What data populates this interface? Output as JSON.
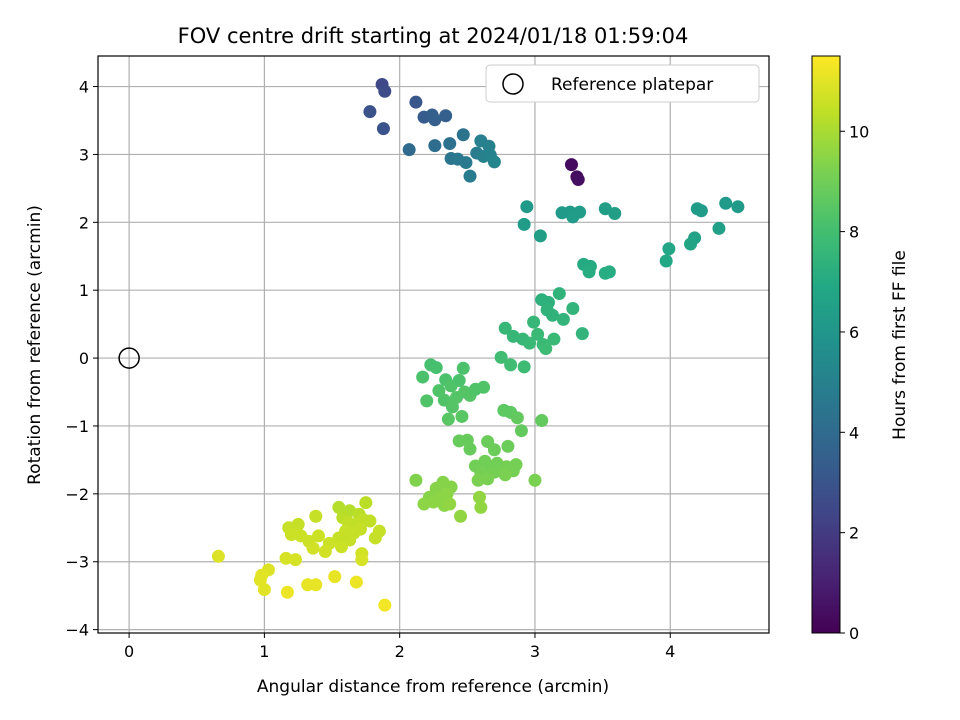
{
  "chart_data": {
    "type": "scatter",
    "title": "FOV centre drift starting at 2024/01/18 01:59:04",
    "xlabel": "Angular distance from reference (arcmin)",
    "ylabel": "Rotation from reference (arcmin)",
    "xlim": [
      -0.23,
      4.73
    ],
    "ylim": [
      -4.05,
      4.45
    ],
    "xticks": [
      0,
      1,
      2,
      3,
      4
    ],
    "yticks": [
      -4,
      -3,
      -2,
      -1,
      0,
      1,
      2,
      3,
      4
    ],
    "grid": true,
    "legend": {
      "position": "top-right",
      "entries": [
        "Reference platepar"
      ]
    },
    "reference_point": {
      "x": 0,
      "y": 0,
      "label": "Reference platepar"
    },
    "colorbar": {
      "label": "Hours from first FF file",
      "range": [
        0,
        11.5
      ],
      "ticks": [
        0,
        2,
        4,
        6,
        8,
        10
      ],
      "colormap": "viridis"
    },
    "points": [
      {
        "x": 3.27,
        "y": 2.85,
        "h": 0.3
      },
      {
        "x": 3.31,
        "y": 2.67,
        "h": 0.4
      },
      {
        "x": 3.32,
        "y": 2.63,
        "h": 0.5
      },
      {
        "x": 1.87,
        "y": 4.03,
        "h": 2.5
      },
      {
        "x": 1.89,
        "y": 3.93,
        "h": 2.6
      },
      {
        "x": 1.78,
        "y": 3.63,
        "h": 2.9
      },
      {
        "x": 1.88,
        "y": 3.38,
        "h": 3.0
      },
      {
        "x": 2.12,
        "y": 3.77,
        "h": 3.1
      },
      {
        "x": 2.18,
        "y": 3.55,
        "h": 3.3
      },
      {
        "x": 2.24,
        "y": 3.58,
        "h": 3.4
      },
      {
        "x": 2.26,
        "y": 3.51,
        "h": 3.5
      },
      {
        "x": 2.34,
        "y": 3.57,
        "h": 3.5
      },
      {
        "x": 2.07,
        "y": 3.07,
        "h": 4.0
      },
      {
        "x": 2.26,
        "y": 3.13,
        "h": 4.1
      },
      {
        "x": 2.37,
        "y": 3.16,
        "h": 4.3
      },
      {
        "x": 2.47,
        "y": 3.29,
        "h": 4.4
      },
      {
        "x": 2.38,
        "y": 2.94,
        "h": 4.5
      },
      {
        "x": 2.43,
        "y": 2.93,
        "h": 4.6
      },
      {
        "x": 2.49,
        "y": 2.88,
        "h": 4.7
      },
      {
        "x": 2.52,
        "y": 2.68,
        "h": 4.8
      },
      {
        "x": 2.57,
        "y": 3.02,
        "h": 4.8
      },
      {
        "x": 2.6,
        "y": 3.2,
        "h": 4.9
      },
      {
        "x": 2.62,
        "y": 2.97,
        "h": 5.0
      },
      {
        "x": 2.66,
        "y": 3.12,
        "h": 5.0
      },
      {
        "x": 2.67,
        "y": 2.99,
        "h": 5.1
      },
      {
        "x": 2.7,
        "y": 2.89,
        "h": 5.2
      },
      {
        "x": 2.94,
        "y": 2.23,
        "h": 6.2
      },
      {
        "x": 2.92,
        "y": 1.97,
        "h": 6.3
      },
      {
        "x": 3.04,
        "y": 1.8,
        "h": 6.4
      },
      {
        "x": 3.2,
        "y": 2.14,
        "h": 6.2
      },
      {
        "x": 3.26,
        "y": 2.15,
        "h": 6.2
      },
      {
        "x": 3.28,
        "y": 2.08,
        "h": 6.3
      },
      {
        "x": 3.33,
        "y": 2.15,
        "h": 6.3
      },
      {
        "x": 3.52,
        "y": 2.2,
        "h": 6.4
      },
      {
        "x": 3.59,
        "y": 2.13,
        "h": 6.4
      },
      {
        "x": 4.2,
        "y": 2.2,
        "h": 6.3
      },
      {
        "x": 4.23,
        "y": 2.17,
        "h": 6.3
      },
      {
        "x": 4.41,
        "y": 2.28,
        "h": 6.2
      },
      {
        "x": 4.5,
        "y": 2.23,
        "h": 6.2
      },
      {
        "x": 4.36,
        "y": 1.91,
        "h": 6.5
      },
      {
        "x": 4.18,
        "y": 1.77,
        "h": 6.6
      },
      {
        "x": 4.15,
        "y": 1.68,
        "h": 6.7
      },
      {
        "x": 3.99,
        "y": 1.61,
        "h": 6.8
      },
      {
        "x": 3.97,
        "y": 1.43,
        "h": 6.9
      },
      {
        "x": 3.36,
        "y": 1.38,
        "h": 7.0
      },
      {
        "x": 3.41,
        "y": 1.35,
        "h": 7.0
      },
      {
        "x": 3.4,
        "y": 1.27,
        "h": 7.1
      },
      {
        "x": 3.52,
        "y": 1.25,
        "h": 7.1
      },
      {
        "x": 3.55,
        "y": 1.27,
        "h": 7.1
      },
      {
        "x": 3.05,
        "y": 0.86,
        "h": 7.3
      },
      {
        "x": 3.1,
        "y": 0.82,
        "h": 7.3
      },
      {
        "x": 3.18,
        "y": 0.95,
        "h": 7.4
      },
      {
        "x": 3.09,
        "y": 0.71,
        "h": 7.4
      },
      {
        "x": 3.13,
        "y": 0.63,
        "h": 7.4
      },
      {
        "x": 3.21,
        "y": 0.57,
        "h": 7.5
      },
      {
        "x": 3.28,
        "y": 0.73,
        "h": 7.5
      },
      {
        "x": 3.35,
        "y": 0.36,
        "h": 7.5
      },
      {
        "x": 2.99,
        "y": 0.53,
        "h": 7.6
      },
      {
        "x": 2.78,
        "y": 0.44,
        "h": 7.6
      },
      {
        "x": 2.84,
        "y": 0.32,
        "h": 7.6
      },
      {
        "x": 2.91,
        "y": 0.28,
        "h": 7.6
      },
      {
        "x": 2.96,
        "y": 0.22,
        "h": 7.7
      },
      {
        "x": 3.02,
        "y": 0.35,
        "h": 7.7
      },
      {
        "x": 3.06,
        "y": 0.2,
        "h": 7.7
      },
      {
        "x": 3.14,
        "y": 0.28,
        "h": 7.7
      },
      {
        "x": 3.08,
        "y": 0.14,
        "h": 7.8
      },
      {
        "x": 2.92,
        "y": -0.13,
        "h": 7.8
      },
      {
        "x": 2.75,
        "y": 0.01,
        "h": 7.9
      },
      {
        "x": 2.82,
        "y": -0.1,
        "h": 7.9
      },
      {
        "x": 2.23,
        "y": -0.1,
        "h": 8.1
      },
      {
        "x": 2.27,
        "y": -0.14,
        "h": 8.1
      },
      {
        "x": 2.17,
        "y": -0.28,
        "h": 8.2
      },
      {
        "x": 2.34,
        "y": -0.32,
        "h": 8.2
      },
      {
        "x": 2.38,
        "y": -0.41,
        "h": 8.3
      },
      {
        "x": 2.29,
        "y": -0.48,
        "h": 8.3
      },
      {
        "x": 2.33,
        "y": -0.62,
        "h": 8.3
      },
      {
        "x": 2.2,
        "y": -0.63,
        "h": 8.3
      },
      {
        "x": 2.39,
        "y": -0.72,
        "h": 8.4
      },
      {
        "x": 2.42,
        "y": -0.58,
        "h": 8.4
      },
      {
        "x": 2.48,
        "y": -0.5,
        "h": 8.4
      },
      {
        "x": 2.52,
        "y": -0.55,
        "h": 8.4
      },
      {
        "x": 2.47,
        "y": -0.15,
        "h": 8.2
      },
      {
        "x": 2.44,
        "y": -0.33,
        "h": 8.2
      },
      {
        "x": 2.56,
        "y": -0.46,
        "h": 8.3
      },
      {
        "x": 2.62,
        "y": -0.43,
        "h": 8.3
      },
      {
        "x": 2.36,
        "y": -0.9,
        "h": 8.5
      },
      {
        "x": 2.46,
        "y": -0.86,
        "h": 8.5
      },
      {
        "x": 2.77,
        "y": -0.77,
        "h": 8.6
      },
      {
        "x": 2.82,
        "y": -0.8,
        "h": 8.6
      },
      {
        "x": 2.87,
        "y": -0.88,
        "h": 8.7
      },
      {
        "x": 2.9,
        "y": -1.07,
        "h": 8.7
      },
      {
        "x": 3.05,
        "y": -0.92,
        "h": 8.7
      },
      {
        "x": 2.44,
        "y": -1.22,
        "h": 8.8
      },
      {
        "x": 2.5,
        "y": -1.21,
        "h": 8.8
      },
      {
        "x": 2.52,
        "y": -1.34,
        "h": 8.8
      },
      {
        "x": 2.65,
        "y": -1.23,
        "h": 8.9
      },
      {
        "x": 2.7,
        "y": -1.35,
        "h": 8.9
      },
      {
        "x": 2.8,
        "y": -1.3,
        "h": 8.9
      },
      {
        "x": 2.56,
        "y": -1.59,
        "h": 9.0
      },
      {
        "x": 2.63,
        "y": -1.52,
        "h": 9.0
      },
      {
        "x": 2.67,
        "y": -1.6,
        "h": 9.0
      },
      {
        "x": 2.72,
        "y": -1.55,
        "h": 9.0
      },
      {
        "x": 2.7,
        "y": -1.68,
        "h": 9.1
      },
      {
        "x": 2.75,
        "y": -1.65,
        "h": 9.1
      },
      {
        "x": 2.79,
        "y": -1.6,
        "h": 9.1
      },
      {
        "x": 2.84,
        "y": -1.66,
        "h": 9.1
      },
      {
        "x": 2.86,
        "y": -1.57,
        "h": 9.1
      },
      {
        "x": 2.6,
        "y": -1.7,
        "h": 9.1
      },
      {
        "x": 2.58,
        "y": -1.8,
        "h": 9.2
      },
      {
        "x": 2.65,
        "y": -1.78,
        "h": 9.2
      },
      {
        "x": 2.78,
        "y": -1.72,
        "h": 9.2
      },
      {
        "x": 3.0,
        "y": -1.8,
        "h": 9.2
      },
      {
        "x": 2.12,
        "y": -1.8,
        "h": 9.3
      },
      {
        "x": 2.22,
        "y": -2.05,
        "h": 9.4
      },
      {
        "x": 2.27,
        "y": -1.92,
        "h": 9.4
      },
      {
        "x": 2.32,
        "y": -1.83,
        "h": 9.4
      },
      {
        "x": 2.38,
        "y": -1.9,
        "h": 9.4
      },
      {
        "x": 2.3,
        "y": -2.06,
        "h": 9.5
      },
      {
        "x": 2.35,
        "y": -2.0,
        "h": 9.5
      },
      {
        "x": 2.18,
        "y": -2.15,
        "h": 9.5
      },
      {
        "x": 2.25,
        "y": -2.12,
        "h": 9.5
      },
      {
        "x": 2.33,
        "y": -2.17,
        "h": 9.5
      },
      {
        "x": 2.37,
        "y": -2.15,
        "h": 9.6
      },
      {
        "x": 2.59,
        "y": -2.05,
        "h": 9.6
      },
      {
        "x": 2.6,
        "y": -2.2,
        "h": 9.6
      },
      {
        "x": 2.45,
        "y": -2.33,
        "h": 9.6
      },
      {
        "x": 1.55,
        "y": -2.2,
        "h": 10.2
      },
      {
        "x": 1.63,
        "y": -2.25,
        "h": 10.2
      },
      {
        "x": 1.7,
        "y": -2.3,
        "h": 10.3
      },
      {
        "x": 1.75,
        "y": -2.13,
        "h": 10.3
      },
      {
        "x": 1.58,
        "y": -2.35,
        "h": 10.3
      },
      {
        "x": 1.62,
        "y": -2.42,
        "h": 10.4
      },
      {
        "x": 1.68,
        "y": -2.45,
        "h": 10.4
      },
      {
        "x": 1.73,
        "y": -2.38,
        "h": 10.4
      },
      {
        "x": 1.78,
        "y": -2.4,
        "h": 10.4
      },
      {
        "x": 1.6,
        "y": -2.55,
        "h": 10.5
      },
      {
        "x": 1.66,
        "y": -2.58,
        "h": 10.5
      },
      {
        "x": 1.71,
        "y": -2.52,
        "h": 10.5
      },
      {
        "x": 1.55,
        "y": -2.65,
        "h": 10.5
      },
      {
        "x": 1.63,
        "y": -2.68,
        "h": 10.5
      },
      {
        "x": 1.85,
        "y": -2.55,
        "h": 10.5
      },
      {
        "x": 1.82,
        "y": -2.65,
        "h": 10.5
      },
      {
        "x": 1.48,
        "y": -2.73,
        "h": 10.6
      },
      {
        "x": 1.57,
        "y": -2.78,
        "h": 10.6
      },
      {
        "x": 1.18,
        "y": -2.5,
        "h": 10.5
      },
      {
        "x": 1.25,
        "y": -2.45,
        "h": 10.5
      },
      {
        "x": 1.2,
        "y": -2.6,
        "h": 10.6
      },
      {
        "x": 1.27,
        "y": -2.62,
        "h": 10.6
      },
      {
        "x": 1.33,
        "y": -2.7,
        "h": 10.6
      },
      {
        "x": 1.38,
        "y": -2.33,
        "h": 10.5
      },
      {
        "x": 1.4,
        "y": -2.62,
        "h": 10.6
      },
      {
        "x": 1.36,
        "y": -2.8,
        "h": 10.7
      },
      {
        "x": 1.45,
        "y": -2.85,
        "h": 10.7
      },
      {
        "x": 1.72,
        "y": -2.88,
        "h": 10.7
      },
      {
        "x": 1.72,
        "y": -2.97,
        "h": 10.8
      },
      {
        "x": 1.16,
        "y": -2.95,
        "h": 10.8
      },
      {
        "x": 1.23,
        "y": -2.97,
        "h": 10.8
      },
      {
        "x": 0.66,
        "y": -2.92,
        "h": 10.9
      },
      {
        "x": 1.03,
        "y": -3.12,
        "h": 10.9
      },
      {
        "x": 0.98,
        "y": -3.2,
        "h": 11.0
      },
      {
        "x": 0.97,
        "y": -3.27,
        "h": 11.0
      },
      {
        "x": 1.0,
        "y": -3.41,
        "h": 11.0
      },
      {
        "x": 1.32,
        "y": -3.34,
        "h": 11.1
      },
      {
        "x": 1.38,
        "y": -3.34,
        "h": 11.1
      },
      {
        "x": 1.52,
        "y": -3.22,
        "h": 11.1
      },
      {
        "x": 1.68,
        "y": -3.3,
        "h": 11.2
      },
      {
        "x": 1.17,
        "y": -3.45,
        "h": 11.2
      },
      {
        "x": 1.89,
        "y": -3.64,
        "h": 11.3
      }
    ]
  }
}
